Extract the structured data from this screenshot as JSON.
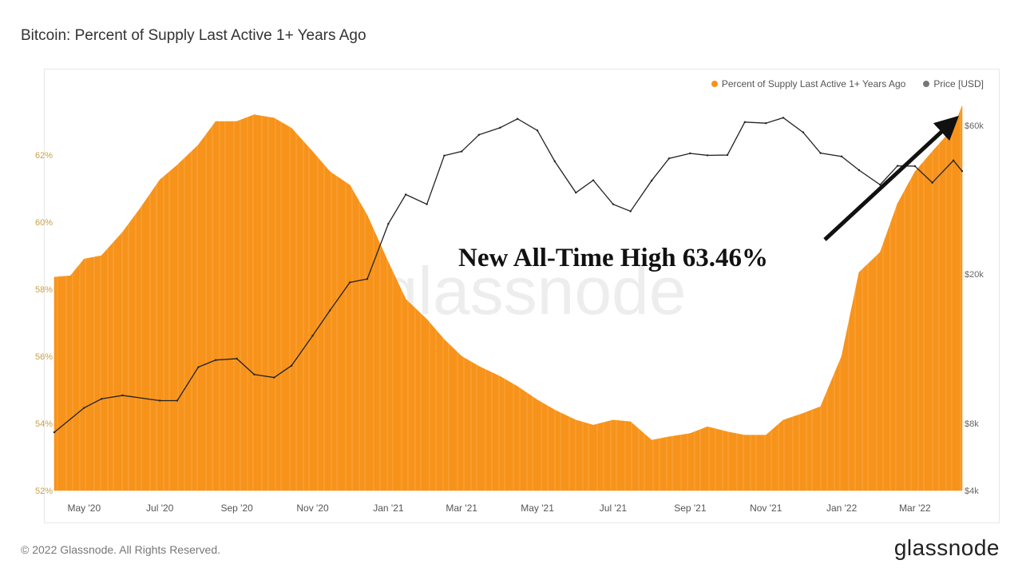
{
  "title": "Bitcoin: Percent of Supply Last Active 1+ Years Ago",
  "footer": {
    "copyright": "© 2022 Glassnode. All Rights Reserved.",
    "logo": "glassnode"
  },
  "watermark": "glassnode",
  "annotation": "New All-Time High 63.46%",
  "colors": {
    "supply": "#f7931a",
    "price": "#222222",
    "left_axis": "#c9a24a",
    "right_axis": "#666666"
  },
  "chart_data": {
    "type": "area+line",
    "title": "Bitcoin: Percent of Supply Last Active 1+ Years Ago",
    "x_range": [
      "2020-04-07",
      "2022-04-08"
    ],
    "x_ticks": [
      "May '20",
      "Jul '20",
      "Sep '20",
      "Nov '20",
      "Jan '21",
      "Mar '21",
      "May '21",
      "Jul '21",
      "Sep '21",
      "Nov '21",
      "Jan '22",
      "Mar '22"
    ],
    "x_tick_dates": [
      "2020-05-01",
      "2020-07-01",
      "2020-09-01",
      "2020-11-01",
      "2021-01-01",
      "2021-03-01",
      "2021-05-01",
      "2021-07-01",
      "2021-09-01",
      "2021-11-01",
      "2022-01-01",
      "2022-03-01"
    ],
    "y_left": {
      "ticks": [
        "52%",
        "54%",
        "56%",
        "58%",
        "60%",
        "62%"
      ],
      "tick_values": [
        52,
        54,
        56,
        58,
        60,
        62
      ],
      "range": [
        52,
        63.7
      ]
    },
    "y_right": {
      "scale": "log",
      "ticks": [
        "$4k",
        "$8k",
        "$20k",
        "$60k"
      ],
      "tick_values": [
        4000,
        8000,
        20000,
        60000
      ]
    },
    "grid": false,
    "legend": {
      "position": "top-right",
      "entries": [
        "Percent of Supply Last Active 1+ Years Ago",
        "Price [USD]"
      ]
    },
    "series": [
      {
        "name": "Percent of Supply Last Active 1+ Years Ago",
        "axis": "left",
        "type": "area",
        "dates": [
          "2020-04-07",
          "2020-04-20",
          "2020-05-01",
          "2020-05-15",
          "2020-06-01",
          "2020-06-15",
          "2020-07-01",
          "2020-07-15",
          "2020-08-01",
          "2020-08-15",
          "2020-09-01",
          "2020-09-15",
          "2020-10-01",
          "2020-10-15",
          "2020-11-01",
          "2020-11-15",
          "2020-12-01",
          "2020-12-15",
          "2021-01-01",
          "2021-01-15",
          "2021-02-01",
          "2021-02-15",
          "2021-03-01",
          "2021-03-15",
          "2021-04-01",
          "2021-04-15",
          "2021-05-01",
          "2021-05-15",
          "2021-06-01",
          "2021-06-15",
          "2021-07-01",
          "2021-07-15",
          "2021-08-01",
          "2021-08-15",
          "2021-09-01",
          "2021-09-15",
          "2021-10-01",
          "2021-10-15",
          "2021-11-01",
          "2021-11-15",
          "2021-12-01",
          "2021-12-15",
          "2022-01-01",
          "2022-01-15",
          "2022-02-01",
          "2022-02-15",
          "2022-03-01",
          "2022-03-15",
          "2022-04-01",
          "2022-04-08"
        ],
        "values": [
          58.36,
          58.4,
          58.9,
          59.0,
          59.7,
          60.4,
          61.26,
          61.7,
          62.3,
          63.0,
          63.0,
          63.2,
          63.1,
          62.8,
          62.1,
          61.5,
          61.1,
          60.2,
          58.8,
          57.7,
          57.1,
          56.5,
          56.0,
          55.7,
          55.4,
          55.1,
          54.7,
          54.4,
          54.1,
          53.95,
          54.1,
          54.05,
          53.5,
          53.6,
          53.7,
          53.9,
          53.75,
          53.65,
          53.65,
          54.1,
          54.3,
          54.5,
          56.0,
          58.5,
          59.1,
          60.55,
          61.5,
          62.1,
          62.8,
          63.46
        ]
      },
      {
        "name": "Price [USD]",
        "axis": "right",
        "type": "line",
        "dates": [
          "2020-04-07",
          "2020-05-01",
          "2020-05-15",
          "2020-06-01",
          "2020-07-01",
          "2020-07-15",
          "2020-08-01",
          "2020-08-15",
          "2020-09-01",
          "2020-09-15",
          "2020-10-01",
          "2020-10-15",
          "2020-11-01",
          "2020-11-15",
          "2020-12-01",
          "2020-12-15",
          "2021-01-01",
          "2021-01-15",
          "2021-02-01",
          "2021-02-15",
          "2021-03-01",
          "2021-03-15",
          "2021-04-01",
          "2021-04-15",
          "2021-05-01",
          "2021-05-15",
          "2021-06-01",
          "2021-06-15",
          "2021-07-01",
          "2021-07-15",
          "2021-08-01",
          "2021-08-15",
          "2021-09-01",
          "2021-09-15",
          "2021-10-01",
          "2021-10-15",
          "2021-11-01",
          "2021-11-15",
          "2021-12-01",
          "2021-12-15",
          "2022-01-01",
          "2022-01-15",
          "2022-02-01",
          "2022-02-15",
          "2022-03-01",
          "2022-03-15",
          "2022-04-01",
          "2022-04-08"
        ],
        "values": [
          7300,
          8800,
          9300,
          9500,
          9200,
          9200,
          11300,
          11800,
          11900,
          10800,
          10600,
          11400,
          13700,
          16000,
          19000,
          19400,
          29000,
          36000,
          33500,
          48000,
          49500,
          56000,
          59000,
          63000,
          57800,
          46000,
          36500,
          40000,
          33500,
          31800,
          39900,
          47000,
          48800,
          48100,
          48200,
          61500,
          61000,
          63500,
          57000,
          48900,
          47700,
          43100,
          38700,
          44500,
          44400,
          39300,
          46300,
          42800
        ]
      }
    ]
  }
}
